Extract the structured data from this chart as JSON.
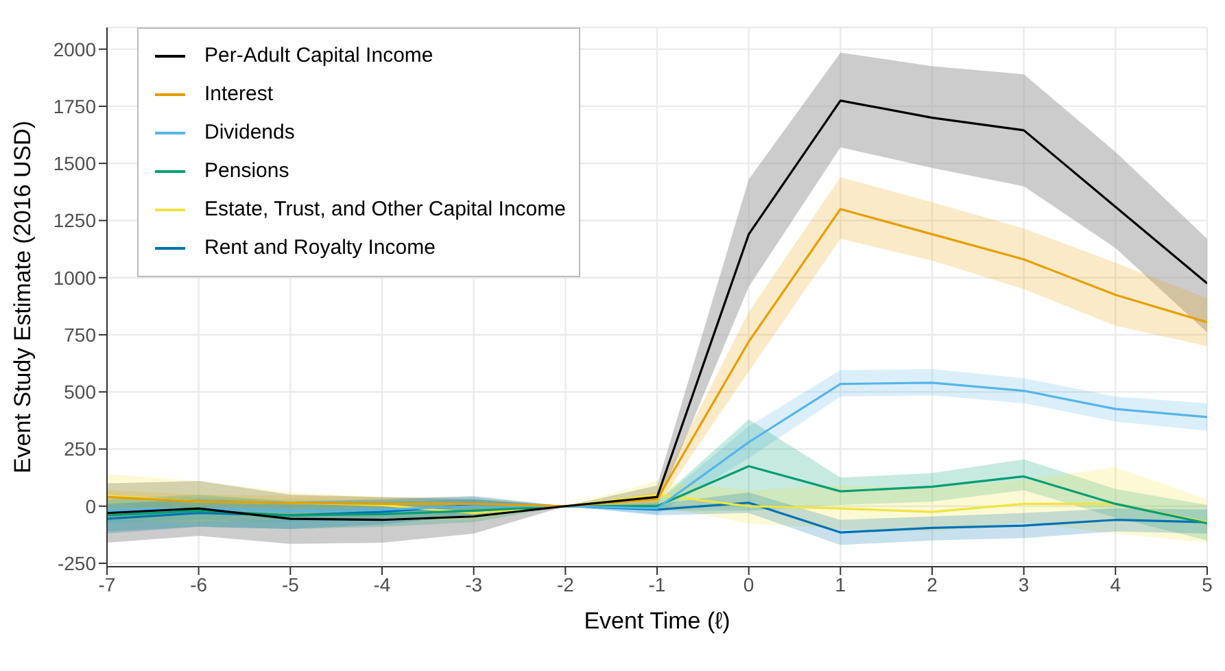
{
  "chart_data": {
    "type": "line",
    "xlabel": "Event Time (ℓ)",
    "ylabel": "Event Study Estimate (2016 USD)",
    "x": [
      -7,
      -6,
      -5,
      -4,
      -3,
      -2,
      -1,
      0,
      1,
      2,
      3,
      4,
      5
    ],
    "xlim": [
      -7,
      5
    ],
    "xticks": [
      -7,
      -6,
      -5,
      -4,
      -3,
      -2,
      -1,
      0,
      1,
      2,
      3,
      4,
      5
    ],
    "ylim": [
      -265,
      2095
    ],
    "yticks": [
      -250,
      0,
      250,
      500,
      750,
      1000,
      1250,
      1500,
      1750,
      2000
    ],
    "grid": true,
    "legend": "top left",
    "line_style": "solid",
    "marker": "none",
    "series": [
      {
        "name": "Per-Adult Capital Income",
        "color": "#000000",
        "values": [
          -30,
          -10,
          -55,
          -60,
          -45,
          0,
          40,
          1190,
          1775,
          1700,
          1645,
          1310,
          975
        ],
        "lower": [
          -160,
          -130,
          -165,
          -160,
          -120,
          0,
          0,
          960,
          1570,
          1480,
          1400,
          1130,
          760
        ],
        "upper": [
          100,
          110,
          50,
          40,
          30,
          0,
          90,
          1430,
          1985,
          1925,
          1890,
          1550,
          1170
        ]
      },
      {
        "name": "Interest",
        "color": "#e69f00",
        "values": [
          40,
          20,
          15,
          10,
          10,
          0,
          30,
          720,
          1300,
          1190,
          1080,
          925,
          805
        ],
        "lower": [
          10,
          -10,
          -15,
          -20,
          -20,
          0,
          0,
          590,
          1170,
          1075,
          950,
          790,
          700
        ],
        "upper": [
          70,
          50,
          45,
          40,
          40,
          0,
          60,
          850,
          1440,
          1330,
          1215,
          1065,
          910
        ]
      },
      {
        "name": "Dividends",
        "color": "#56b4e9",
        "values": [
          -20,
          -10,
          -20,
          -15,
          0,
          0,
          -10,
          280,
          535,
          540,
          505,
          425,
          390
        ],
        "lower": [
          -70,
          -60,
          -70,
          -60,
          -40,
          0,
          -35,
          210,
          480,
          485,
          450,
          370,
          330
        ],
        "upper": [
          30,
          40,
          30,
          30,
          40,
          0,
          15,
          350,
          595,
          600,
          560,
          480,
          450
        ]
      },
      {
        "name": "Pensions",
        "color": "#009e73",
        "values": [
          -40,
          -20,
          -40,
          -35,
          -20,
          0,
          0,
          175,
          65,
          85,
          130,
          10,
          -75
        ],
        "lower": [
          -110,
          -90,
          -100,
          -90,
          -70,
          0,
          -20,
          -20,
          5,
          20,
          70,
          -50,
          -150
        ],
        "upper": [
          30,
          50,
          20,
          20,
          30,
          0,
          20,
          380,
          125,
          145,
          205,
          75,
          5
        ]
      },
      {
        "name": "Estate, Trust, and Other Capital Income",
        "color": "#f0e442",
        "values": [
          45,
          20,
          15,
          5,
          -30,
          0,
          50,
          0,
          -10,
          -25,
          10,
          10,
          -70
        ],
        "lower": [
          -60,
          -70,
          -60,
          -60,
          -60,
          0,
          0,
          -75,
          -100,
          -110,
          -70,
          -120,
          -160
        ],
        "upper": [
          140,
          110,
          60,
          40,
          10,
          0,
          110,
          70,
          90,
          80,
          115,
          170,
          30
        ]
      },
      {
        "name": "Rent and Royalty Income",
        "color": "#0072b2",
        "values": [
          -55,
          -30,
          -40,
          -25,
          5,
          0,
          -15,
          15,
          -115,
          -95,
          -85,
          -60,
          -70
        ],
        "lower": [
          -120,
          -90,
          -100,
          -80,
          -40,
          0,
          -40,
          -30,
          -170,
          -150,
          -140,
          -110,
          -120
        ],
        "upper": [
          10,
          30,
          20,
          30,
          45,
          0,
          10,
          60,
          -60,
          -45,
          -30,
          -10,
          -15
        ]
      }
    ]
  }
}
